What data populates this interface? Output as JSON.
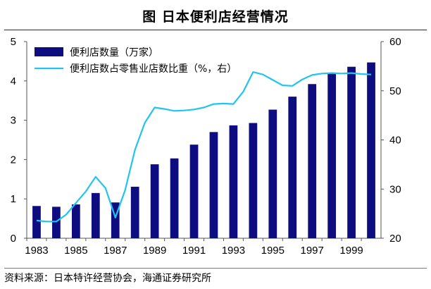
{
  "title": "图    日本便利店经营情况",
  "source": "资料来源：日本特许经营协会，海通证券研究所",
  "chart_data": {
    "type": "bar",
    "x": [
      1983,
      1984,
      1985,
      1986,
      1987,
      1988,
      1989,
      1990,
      1991,
      1992,
      1993,
      1994,
      1995,
      1996,
      1997,
      1998,
      1999,
      2000
    ],
    "x_tick_labels": [
      "1983",
      "1985",
      "1987",
      "1989",
      "1991",
      "1993",
      "1995",
      "1997",
      "1999"
    ],
    "y_left": {
      "lim": [
        0,
        5
      ],
      "ticks": [
        "0",
        "1",
        "2",
        "3",
        "4",
        "5"
      ]
    },
    "y_right": {
      "lim": [
        20,
        60
      ],
      "ticks": [
        "20",
        "30",
        "40",
        "50",
        "60"
      ]
    },
    "legend_position": "top-left",
    "grid": false,
    "series": [
      {
        "name": "便利店数量（万家）",
        "type": "bar",
        "axis": "left",
        "color": "#0d0d80",
        "values": [
          0.82,
          0.8,
          0.86,
          1.15,
          0.91,
          1.31,
          1.88,
          2.03,
          2.38,
          2.7,
          2.87,
          2.93,
          3.27,
          3.6,
          3.92,
          4.2,
          4.36,
          4.47
        ]
      },
      {
        "name": "便利店数占零售业店数比重（%，右）",
        "type": "line",
        "axis": "right",
        "color": "#22c3f0",
        "x": [
          1983,
          1983.5,
          1984,
          1984.5,
          1985,
          1985.5,
          1986,
          1986.5,
          1987,
          1987.5,
          1988,
          1988.5,
          1989,
          1989.5,
          1990,
          1990.5,
          1991,
          1991.5,
          1992,
          1992.5,
          1993,
          1993.5,
          1994,
          1994.5,
          1995,
          1995.5,
          1996,
          1996.5,
          1997,
          1997.5,
          1998,
          1998.5,
          1999,
          1999.5,
          2000
        ],
        "values": [
          23.6,
          23.4,
          23.4,
          24.8,
          27.2,
          29.5,
          32.5,
          30.2,
          24.2,
          29.8,
          38.0,
          43.5,
          46.6,
          46.3,
          45.9,
          46.0,
          46.2,
          46.6,
          47.3,
          47.4,
          47.3,
          49.8,
          53.8,
          53.3,
          52.2,
          51.1,
          51.0,
          52.3,
          53.2,
          53.5,
          53.6,
          53.5,
          53.6,
          53.4,
          53.3
        ]
      }
    ]
  }
}
